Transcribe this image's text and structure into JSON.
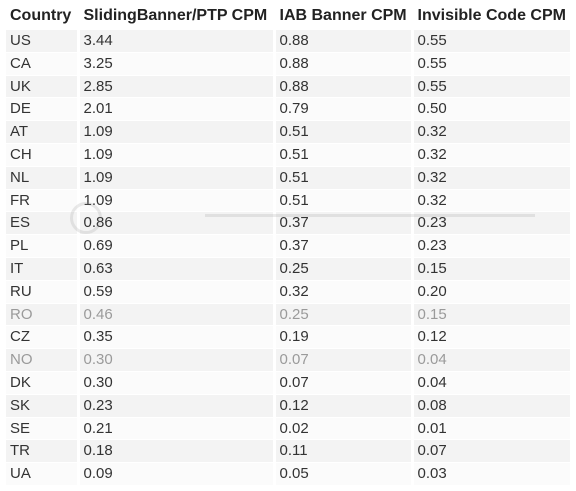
{
  "table": {
    "headers": [
      "Country",
      "SlidingBanner/PTP CPM",
      "IAB Banner CPM",
      "Invisible Code CPM"
    ],
    "rows": [
      [
        "US",
        "3.44",
        "0.88",
        "0.55"
      ],
      [
        "CA",
        "3.25",
        "0.88",
        "0.55"
      ],
      [
        "UK",
        "2.85",
        "0.88",
        "0.55"
      ],
      [
        "DE",
        "2.01",
        "0.79",
        "0.50"
      ],
      [
        "AT",
        "1.09",
        "0.51",
        "0.32"
      ],
      [
        "CH",
        "1.09",
        "0.51",
        "0.32"
      ],
      [
        "NL",
        "1.09",
        "0.51",
        "0.32"
      ],
      [
        "FR",
        "1.09",
        "0.51",
        "0.32"
      ],
      [
        "ES",
        "0.86",
        "0.37",
        "0.23"
      ],
      [
        "PL",
        "0.69",
        "0.37",
        "0.23"
      ],
      [
        "IT",
        "0.63",
        "0.25",
        "0.15"
      ],
      [
        "RU",
        "0.59",
        "0.32",
        "0.20"
      ],
      [
        "RO",
        "0.46",
        "0.25",
        "0.15"
      ],
      [
        "CZ",
        "0.35",
        "0.19",
        "0.12"
      ],
      [
        "NO",
        "0.30",
        "0.07",
        "0.04"
      ],
      [
        "DK",
        "0.30",
        "0.07",
        "0.04"
      ],
      [
        "SK",
        "0.23",
        "0.12",
        "0.08"
      ],
      [
        "SE",
        "0.21",
        "0.02",
        "0.01"
      ],
      [
        "TR",
        "0.18",
        "0.11",
        "0.07"
      ],
      [
        "UA",
        "0.09",
        "0.05",
        "0.03"
      ]
    ],
    "faded_rows": [
      12,
      14
    ]
  },
  "watermark": {
    "icon": "photobucket-logo-icon"
  }
}
